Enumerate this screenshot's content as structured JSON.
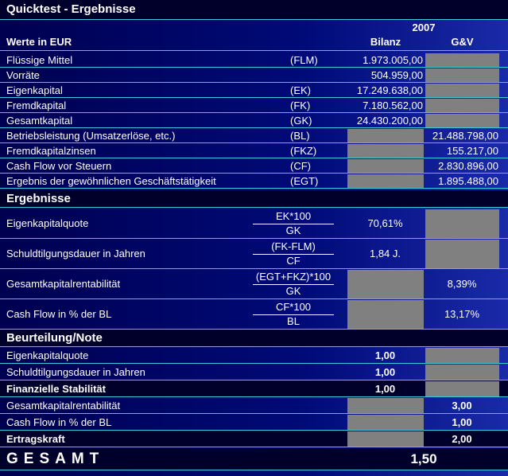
{
  "header": {
    "title": "Quicktest - Ergebnisse",
    "year": "2007",
    "unit": "Werte in EUR",
    "col_bilanz": "Bilanz",
    "col_guv": "G&V"
  },
  "values": {
    "rows": [
      {
        "label": "Flüssige Mittel",
        "code": "(FLM)",
        "bilanz": "1.973.005,00"
      },
      {
        "label": "Vorräte",
        "bilanz": "504.959,00"
      },
      {
        "label": "Eigenkapital",
        "code": "(EK)",
        "bilanz": "17.249.638,00"
      },
      {
        "label": "Fremdkapital",
        "code": "(FK)",
        "bilanz": "7.180.562,00"
      },
      {
        "label": "Gesamtkapital",
        "code": "(GK)",
        "bilanz": "24.430.200,00"
      },
      {
        "label": "Betriebsleistung (Umsatzerlöse, etc.)",
        "code": "(BL)",
        "guv": "21.488.798,00"
      },
      {
        "label": "Fremdkapitalzinsen",
        "code": "(FKZ)",
        "guv": "155.217,00"
      },
      {
        "label": "Cash Flow vor Steuern",
        "code": "(CF)",
        "guv": "2.830.896,00"
      },
      {
        "label": "Ergebnis der gewöhnlichen Geschäftstätigkeit",
        "code": "(EGT)",
        "guv": "1.895.488,00"
      }
    ]
  },
  "results": {
    "title": "Ergebnisse",
    "rows": [
      {
        "label": "Eigenkapitalquote",
        "numerator": "EK*100",
        "denominator": "GK",
        "bilanz": "70,61%"
      },
      {
        "label": "Schuldtilgungsdauer in Jahren",
        "numerator": "(FK-FLM)",
        "denominator": "CF",
        "bilanz": "1,84 J."
      },
      {
        "label": "Gesamtkapitalrentabilität",
        "numerator": "(EGT+FKZ)*100",
        "denominator": "GK",
        "guv": "8,39%"
      },
      {
        "label": "Cash Flow in % der BL",
        "numerator": "CF*100",
        "denominator": "BL",
        "guv": "13,17%"
      }
    ]
  },
  "rating": {
    "title": "Beurteilung/Note",
    "rows": [
      {
        "label": "Eigenkapitalquote",
        "bilanz": "1,00"
      },
      {
        "label": "Schuldtilgungsdauer in Jahren",
        "bilanz": "1,00"
      },
      {
        "label": "Finanzielle Stabilität",
        "bilanz": "1,00",
        "bold": true
      },
      {
        "label": "Gesamtkapitalrentabilität",
        "guv": "3,00"
      },
      {
        "label": "Cash Flow in % der BL",
        "guv": "1,00"
      },
      {
        "label": "Ertragskraft",
        "guv": "2,00",
        "bold": true
      }
    ]
  },
  "total": {
    "label": "GESAMT",
    "value": "1,50"
  }
}
